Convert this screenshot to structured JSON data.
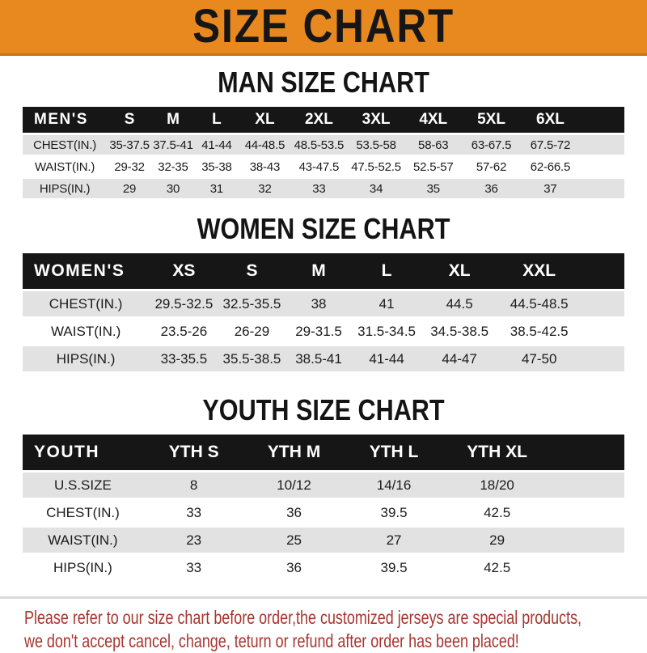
{
  "banner": {
    "title": "SIZE CHART"
  },
  "colors": {
    "banner_bg": "#E8891F",
    "banner_border": "#C8721A",
    "header_bg": "#161616",
    "header_text": "#FFFFFF",
    "shaded_row_bg": "#E2E2E2",
    "plain_row_bg": "#FFFFFF",
    "body_text": "#1B1B1B",
    "note_text": "#A8352E",
    "divider": "#DBDBDB"
  },
  "chart_data": [
    {
      "type": "table",
      "title": "MAN SIZE CHART",
      "corner_label": "MEN'S",
      "columns": [
        "S",
        "M",
        "L",
        "XL",
        "2XL",
        "3XL",
        "4XL",
        "5XL",
        "6XL"
      ],
      "rows": [
        {
          "label": "CHEST(IN.)",
          "shaded": true,
          "values": [
            "35-37.5",
            "37.5-41",
            "41-44",
            "44-48.5",
            "48.5-53.5",
            "53.5-58",
            "58-63",
            "63-67.5",
            "67.5-72"
          ]
        },
        {
          "label": "WAIST(IN.)",
          "shaded": false,
          "values": [
            "29-32",
            "32-35",
            "35-38",
            "38-43",
            "43-47.5",
            "47.5-52.5",
            "52.5-57",
            "57-62",
            "62-66.5"
          ]
        },
        {
          "label": "HIPS(IN.)",
          "shaded": true,
          "values": [
            "29",
            "30",
            "31",
            "32",
            "33",
            "34",
            "35",
            "36",
            "37"
          ]
        }
      ],
      "col_widths": [
        "14%",
        "7.5%",
        "7%",
        "7.5%",
        "8.5%",
        "9.5%",
        "9.5%",
        "9.5%",
        "9.8%",
        "9.8%",
        "7.4%"
      ]
    },
    {
      "type": "table",
      "title": "WOMEN SIZE CHART",
      "corner_label": "WOMEN'S",
      "columns": [
        "XS",
        "S",
        "M",
        "L",
        "XL",
        "XXL"
      ],
      "rows": [
        {
          "label": "CHEST(IN.)",
          "shaded": true,
          "values": [
            "29.5-32.5",
            "32.5-35.5",
            "38",
            "41",
            "44.5",
            "44.5-48.5"
          ]
        },
        {
          "label": "WAIST(IN.)",
          "shaded": false,
          "values": [
            "23.5-26",
            "26-29",
            "29-31.5",
            "31.5-34.5",
            "34.5-38.5",
            "38.5-42.5"
          ]
        },
        {
          "label": "HIPS(IN.)",
          "shaded": true,
          "values": [
            "33-35.5",
            "35.5-38.5",
            "38.5-41",
            "41-44",
            "44-47",
            "47-50"
          ]
        }
      ],
      "col_widths": [
        "21%",
        "11.6%",
        "11%",
        "11.2%",
        "11.4%",
        "12.8%",
        "13.7%",
        "7.3%"
      ]
    },
    {
      "type": "table",
      "title": "YOUTH SIZE CHART",
      "corner_label": "YOUTH",
      "columns": [
        "YTH S",
        "YTH M",
        "YTH L",
        "YTH XL"
      ],
      "rows": [
        {
          "label": "U.S.SIZE",
          "shaded": true,
          "values": [
            "8",
            "10/12",
            "14/16",
            "18/20"
          ]
        },
        {
          "label": "CHEST(IN.)",
          "shaded": false,
          "values": [
            "33",
            "36",
            "39.5",
            "42.5"
          ]
        },
        {
          "label": "WAIST(IN.)",
          "shaded": true,
          "values": [
            "23",
            "25",
            "27",
            "29"
          ]
        },
        {
          "label": "HIPS(IN.)",
          "shaded": false,
          "values": [
            "33",
            "36",
            "39.5",
            "42.5"
          ]
        }
      ],
      "col_widths": [
        "20%",
        "16.9%",
        "16.4%",
        "16.8%",
        "17.5%",
        "12.4%"
      ]
    }
  ],
  "footer": {
    "line1": "Please refer to our size chart before order,the customized jerseys are special products,",
    "line2": "we don't accept cancel, change, teturn or refund after order has been placed!"
  }
}
